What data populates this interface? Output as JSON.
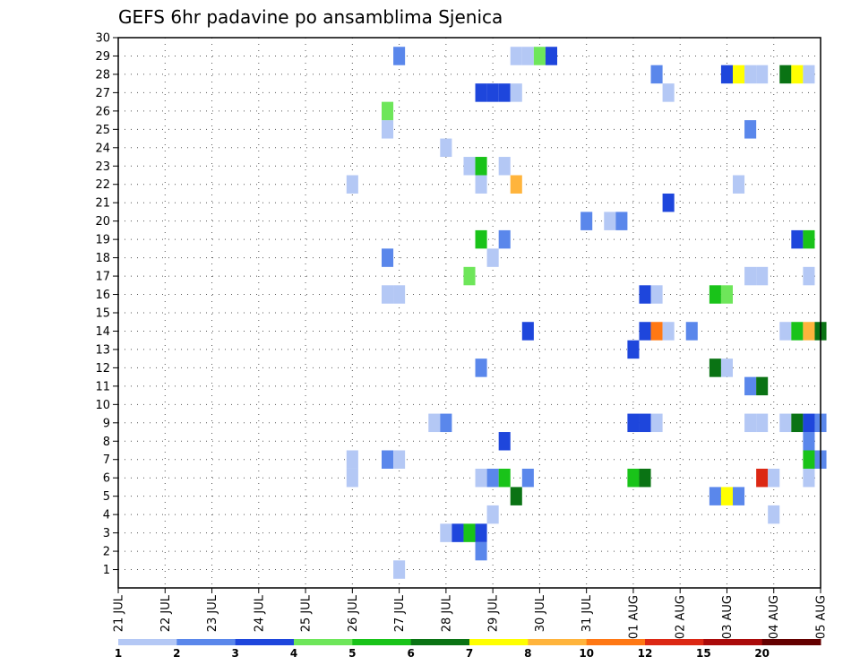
{
  "chart_data": {
    "type": "heatmap",
    "title": "GEFS 6hr padavine po ansamblima Sjenica",
    "y_ticks": [
      "1",
      "2",
      "3",
      "4",
      "5",
      "6",
      "7",
      "8",
      "9",
      "10",
      "11",
      "12",
      "13",
      "14",
      "15",
      "16",
      "17",
      "18",
      "19",
      "20",
      "21",
      "22",
      "23",
      "24",
      "25",
      "26",
      "27",
      "28",
      "29",
      "30"
    ],
    "x_ticks": [
      "21 JUL",
      "22 JUL",
      "23 JUL",
      "24 JUL",
      "25 JUL",
      "26 JUL",
      "27 JUL",
      "28 JUL",
      "29 JUL",
      "30 JUL",
      "31 JUL",
      "01 AUG",
      "02 AUG",
      "03 AUG",
      "04 AUG",
      "05 AUG"
    ],
    "x_range_days": [
      0,
      15
    ],
    "y_range": [
      0,
      30
    ],
    "grid": true,
    "color_scale": {
      "boundaries": [
        "1",
        "2",
        "3",
        "4",
        "5",
        "6",
        "7",
        "8",
        "10",
        "12",
        "15",
        "20"
      ],
      "colors": [
        "#b4c8f5",
        "#5a87eb",
        "#1e46dc",
        "#6ee65a",
        "#19c319",
        "#0a7314",
        "#ffff00",
        "#ffb43c",
        "#ff7814",
        "#dc2814",
        "#aa0a0a",
        "#640000"
      ]
    },
    "cells": [
      {
        "day": 6.0,
        "member": 1,
        "cls": 0
      },
      {
        "day": 7.75,
        "member": 2,
        "cls": 1
      },
      {
        "day": 7.0,
        "member": 3,
        "cls": 0
      },
      {
        "day": 7.25,
        "member": 3,
        "cls": 2
      },
      {
        "day": 7.5,
        "member": 3,
        "cls": 4
      },
      {
        "day": 7.75,
        "member": 3,
        "cls": 2
      },
      {
        "day": 8.0,
        "member": 4,
        "cls": 0
      },
      {
        "day": 14.0,
        "member": 4,
        "cls": 0
      },
      {
        "day": 8.5,
        "member": 5,
        "cls": 5
      },
      {
        "day": 12.75,
        "member": 5,
        "cls": 1
      },
      {
        "day": 13.0,
        "member": 5,
        "cls": 6
      },
      {
        "day": 13.25,
        "member": 5,
        "cls": 1
      },
      {
        "day": 5.0,
        "member": 6,
        "cls": 0
      },
      {
        "day": 7.75,
        "member": 6,
        "cls": 0
      },
      {
        "day": 8.0,
        "member": 6,
        "cls": 1
      },
      {
        "day": 8.25,
        "member": 6,
        "cls": 4
      },
      {
        "day": 8.75,
        "member": 6,
        "cls": 1
      },
      {
        "day": 11.0,
        "member": 6,
        "cls": 4
      },
      {
        "day": 11.25,
        "member": 6,
        "cls": 5
      },
      {
        "day": 13.75,
        "member": 6,
        "cls": 9
      },
      {
        "day": 14.0,
        "member": 6,
        "cls": 0
      },
      {
        "day": 14.75,
        "member": 6,
        "cls": 0
      },
      {
        "day": 5.0,
        "member": 7,
        "cls": 0
      },
      {
        "day": 5.75,
        "member": 7,
        "cls": 1
      },
      {
        "day": 6.0,
        "member": 7,
        "cls": 0
      },
      {
        "day": 14.75,
        "member": 7,
        "cls": 4
      },
      {
        "day": 15.0,
        "member": 7,
        "cls": 1
      },
      {
        "day": 8.25,
        "member": 8,
        "cls": 2
      },
      {
        "day": 14.75,
        "member": 8,
        "cls": 1
      },
      {
        "day": 6.75,
        "member": 9,
        "cls": 0
      },
      {
        "day": 7.0,
        "member": 9,
        "cls": 1
      },
      {
        "day": 11.0,
        "member": 9,
        "cls": 2
      },
      {
        "day": 11.25,
        "member": 9,
        "cls": 2
      },
      {
        "day": 11.5,
        "member": 9,
        "cls": 0
      },
      {
        "day": 13.5,
        "member": 9,
        "cls": 0
      },
      {
        "day": 13.75,
        "member": 9,
        "cls": 0
      },
      {
        "day": 14.25,
        "member": 9,
        "cls": 0
      },
      {
        "day": 14.5,
        "member": 9,
        "cls": 5
      },
      {
        "day": 14.75,
        "member": 9,
        "cls": 2
      },
      {
        "day": 15.0,
        "member": 9,
        "cls": 1
      },
      {
        "day": 13.5,
        "member": 11,
        "cls": 1
      },
      {
        "day": 13.75,
        "member": 11,
        "cls": 5
      },
      {
        "day": 7.75,
        "member": 12,
        "cls": 1
      },
      {
        "day": 12.75,
        "member": 12,
        "cls": 5
      },
      {
        "day": 13.0,
        "member": 12,
        "cls": 0
      },
      {
        "day": 11.0,
        "member": 13,
        "cls": 2
      },
      {
        "day": 8.75,
        "member": 14,
        "cls": 2
      },
      {
        "day": 11.25,
        "member": 14,
        "cls": 2
      },
      {
        "day": 11.5,
        "member": 14,
        "cls": 8
      },
      {
        "day": 11.75,
        "member": 14,
        "cls": 0
      },
      {
        "day": 12.25,
        "member": 14,
        "cls": 1
      },
      {
        "day": 14.25,
        "member": 14,
        "cls": 0
      },
      {
        "day": 14.5,
        "member": 14,
        "cls": 4
      },
      {
        "day": 14.75,
        "member": 14,
        "cls": 7
      },
      {
        "day": 15.0,
        "member": 14,
        "cls": 5
      },
      {
        "day": 6.0,
        "member": 16,
        "cls": 0
      },
      {
        "day": 5.75,
        "member": 16,
        "cls": 0
      },
      {
        "day": 11.25,
        "member": 16,
        "cls": 2
      },
      {
        "day": 11.5,
        "member": 16,
        "cls": 0
      },
      {
        "day": 12.75,
        "member": 16,
        "cls": 4
      },
      {
        "day": 13.0,
        "member": 16,
        "cls": 3
      },
      {
        "day": 7.5,
        "member": 17,
        "cls": 3
      },
      {
        "day": 13.5,
        "member": 17,
        "cls": 0
      },
      {
        "day": 13.75,
        "member": 17,
        "cls": 0
      },
      {
        "day": 14.75,
        "member": 17,
        "cls": 0
      },
      {
        "day": 5.75,
        "member": 18,
        "cls": 1
      },
      {
        "day": 8.0,
        "member": 18,
        "cls": 0
      },
      {
        "day": 7.75,
        "member": 19,
        "cls": 4
      },
      {
        "day": 8.25,
        "member": 19,
        "cls": 1
      },
      {
        "day": 14.5,
        "member": 19,
        "cls": 2
      },
      {
        "day": 14.75,
        "member": 19,
        "cls": 4
      },
      {
        "day": 10.0,
        "member": 20,
        "cls": 1
      },
      {
        "day": 10.5,
        "member": 20,
        "cls": 0
      },
      {
        "day": 10.75,
        "member": 20,
        "cls": 1
      },
      {
        "day": 11.75,
        "member": 21,
        "cls": 2
      },
      {
        "day": 5.0,
        "member": 22,
        "cls": 0
      },
      {
        "day": 7.75,
        "member": 22,
        "cls": 0
      },
      {
        "day": 8.5,
        "member": 22,
        "cls": 7
      },
      {
        "day": 13.25,
        "member": 22,
        "cls": 0
      },
      {
        "day": 7.5,
        "member": 23,
        "cls": 0
      },
      {
        "day": 7.75,
        "member": 23,
        "cls": 4
      },
      {
        "day": 8.25,
        "member": 23,
        "cls": 0
      },
      {
        "day": 7.0,
        "member": 24,
        "cls": 0
      },
      {
        "day": 5.75,
        "member": 25,
        "cls": 0
      },
      {
        "day": 13.5,
        "member": 25,
        "cls": 1
      },
      {
        "day": 5.75,
        "member": 26,
        "cls": 3
      },
      {
        "day": 7.75,
        "member": 27,
        "cls": 2
      },
      {
        "day": 8.0,
        "member": 27,
        "cls": 2
      },
      {
        "day": 8.25,
        "member": 27,
        "cls": 2
      },
      {
        "day": 8.5,
        "member": 27,
        "cls": 0
      },
      {
        "day": 11.75,
        "member": 27,
        "cls": 0
      },
      {
        "day": 11.5,
        "member": 28,
        "cls": 1
      },
      {
        "day": 13.0,
        "member": 28,
        "cls": 2
      },
      {
        "day": 13.25,
        "member": 28,
        "cls": 6
      },
      {
        "day": 13.5,
        "member": 28,
        "cls": 0
      },
      {
        "day": 13.75,
        "member": 28,
        "cls": 0
      },
      {
        "day": 14.25,
        "member": 28,
        "cls": 5
      },
      {
        "day": 14.5,
        "member": 28,
        "cls": 6
      },
      {
        "day": 14.75,
        "member": 28,
        "cls": 0
      },
      {
        "day": 6.0,
        "member": 29,
        "cls": 1
      },
      {
        "day": 8.5,
        "member": 29,
        "cls": 0
      },
      {
        "day": 8.75,
        "member": 29,
        "cls": 0
      },
      {
        "day": 9.0,
        "member": 29,
        "cls": 3
      },
      {
        "day": 9.25,
        "member": 29,
        "cls": 2
      }
    ]
  }
}
